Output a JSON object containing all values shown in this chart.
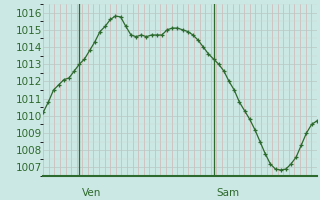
{
  "pressure": [
    1010.2,
    1010.8,
    1011.5,
    1011.8,
    1012.1,
    1012.2,
    1012.6,
    1013.0,
    1013.3,
    1013.8,
    1014.3,
    1014.9,
    1015.2,
    1015.6,
    1015.8,
    1015.75,
    1015.2,
    1014.7,
    1014.6,
    1014.7,
    1014.6,
    1014.7,
    1014.7,
    1014.7,
    1015.0,
    1015.1,
    1015.1,
    1015.0,
    1014.9,
    1014.7,
    1014.4,
    1014.0,
    1013.6,
    1013.3,
    1013.0,
    1012.6,
    1012.0,
    1011.5,
    1010.8,
    1010.3,
    1009.8,
    1009.2,
    1008.5,
    1007.8,
    1007.2,
    1006.9,
    1006.85,
    1006.9,
    1007.2,
    1007.6,
    1008.3,
    1009.0,
    1009.5,
    1009.7
  ],
  "ven_index": 7,
  "sam_index": 33,
  "ylim_min": 1006.5,
  "ylim_max": 1016.5,
  "yticks": [
    1007,
    1008,
    1009,
    1010,
    1011,
    1012,
    1013,
    1014,
    1015,
    1016
  ],
  "bg_color": "#cce8e4",
  "line_color": "#2d6a2d",
  "marker_color": "#2d6a2d",
  "ven_label": "Ven",
  "sam_label": "Sam",
  "font_size": 7.5
}
